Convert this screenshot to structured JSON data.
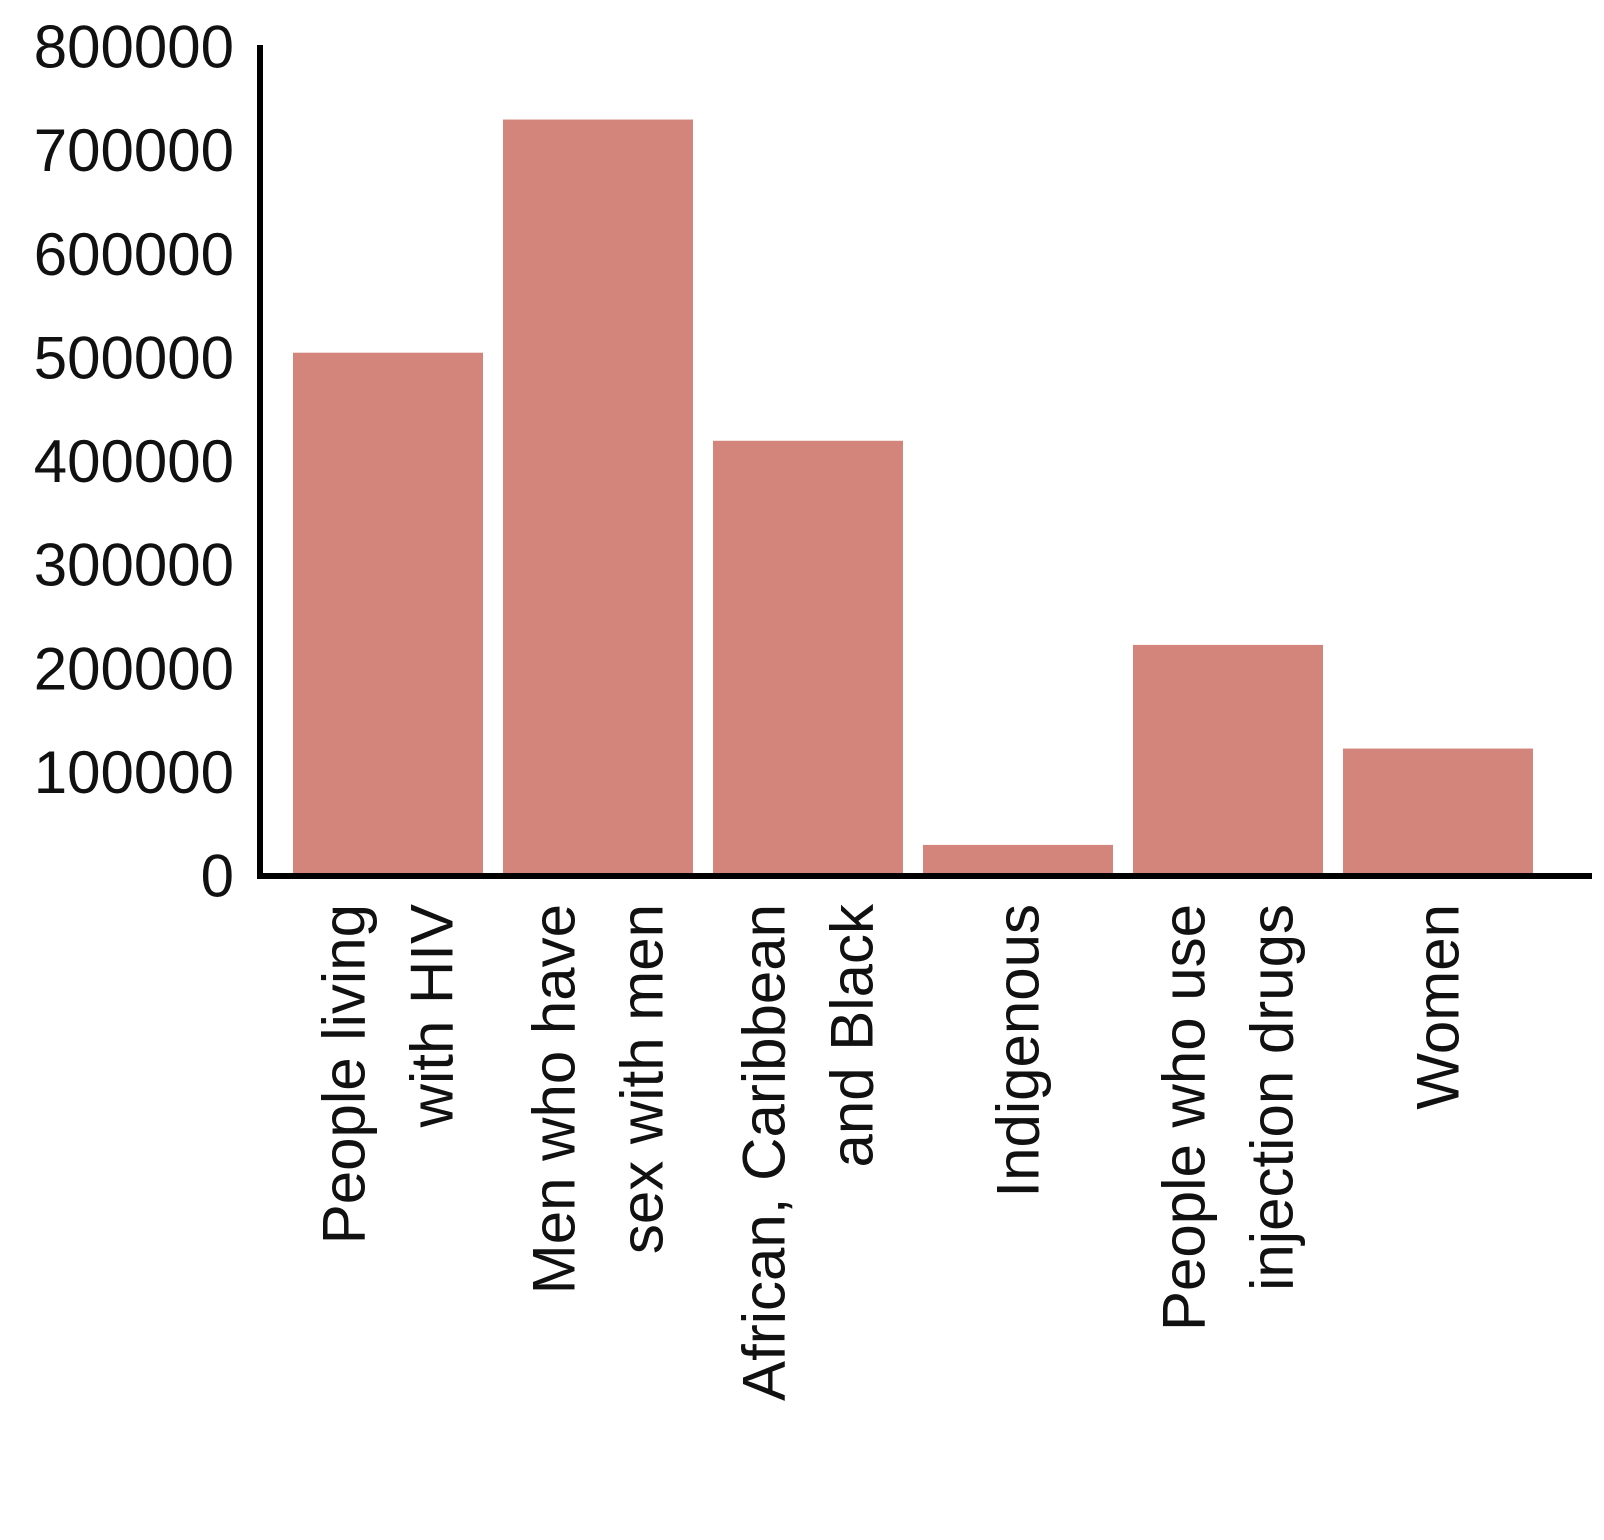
{
  "chart_data": {
    "type": "bar",
    "title": "",
    "xlabel": "",
    "ylabel": "",
    "categories": [
      [
        "People living",
        "with HIV"
      ],
      [
        "Men who have",
        "sex with men"
      ],
      [
        "African, Caribbean",
        "and Black"
      ],
      [
        "Indigenous"
      ],
      [
        "People who use",
        "injection drugs"
      ],
      [
        "Women"
      ]
    ],
    "values": [
      505000,
      730000,
      420000,
      30000,
      223000,
      123000
    ],
    "ylim": [
      0,
      800000
    ],
    "yticks": [
      "0",
      "100000",
      "200000",
      "300000",
      "400000",
      "500000",
      "600000",
      "700000",
      "800000"
    ],
    "grid": false,
    "legend": "none",
    "bar_color": "#d4857b",
    "axis_color": "#000000"
  }
}
